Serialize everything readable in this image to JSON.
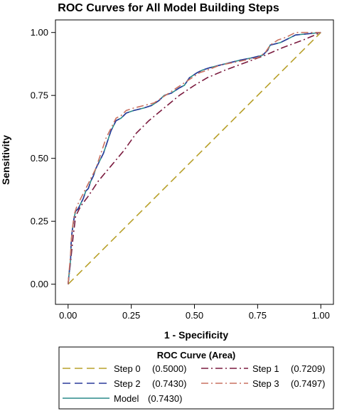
{
  "chart_data": {
    "type": "line",
    "title": "ROC Curves for All Model Building Steps",
    "xlabel": "1 - Specificity",
    "ylabel": "Sensitivity",
    "xlim": [
      -0.05,
      1.05
    ],
    "ylim": [
      -0.08,
      1.05
    ],
    "x_ticks": [
      0.0,
      0.25,
      0.5,
      0.75,
      1.0
    ],
    "x_tick_labels": [
      "0.00",
      "0.25",
      "0.50",
      "0.75",
      "1.00"
    ],
    "y_ticks": [
      0.0,
      0.25,
      0.5,
      0.75,
      1.0
    ],
    "y_tick_labels": [
      "0.00",
      "0.25",
      "0.50",
      "0.75",
      "1.00"
    ],
    "grid": false,
    "legend": {
      "title": "ROC Curve (Area)",
      "placement": "bottom"
    },
    "series": [
      {
        "name": "Step 0",
        "area": "(0.5000)",
        "color": "#b8a02a",
        "dash": "long-dash",
        "points": [
          [
            0,
            0
          ],
          [
            1,
            1
          ]
        ]
      },
      {
        "name": "Step 1",
        "area": "(0.7209)",
        "color": "#7a1a3e",
        "dash": "dash-dot",
        "points": [
          [
            0,
            0
          ],
          [
            0.01,
            0.09
          ],
          [
            0.02,
            0.19
          ],
          [
            0.03,
            0.27
          ],
          [
            0.05,
            0.31
          ],
          [
            0.08,
            0.35
          ],
          [
            0.12,
            0.41
          ],
          [
            0.17,
            0.47
          ],
          [
            0.22,
            0.53
          ],
          [
            0.27,
            0.6
          ],
          [
            0.32,
            0.65
          ],
          [
            0.38,
            0.7
          ],
          [
            0.44,
            0.75
          ],
          [
            0.5,
            0.79
          ],
          [
            0.55,
            0.82
          ],
          [
            0.62,
            0.85
          ],
          [
            0.7,
            0.88
          ],
          [
            0.78,
            0.91
          ],
          [
            0.85,
            0.94
          ],
          [
            0.93,
            0.97
          ],
          [
            1,
            1
          ]
        ]
      },
      {
        "name": "Step 2",
        "area": "(0.7430)",
        "color": "#2a3a9a",
        "dash": "long-dash",
        "points": [
          [
            0,
            0
          ],
          [
            0.005,
            0.05
          ],
          [
            0.01,
            0.1
          ],
          [
            0.012,
            0.16
          ],
          [
            0.015,
            0.2
          ],
          [
            0.02,
            0.24
          ],
          [
            0.025,
            0.27
          ],
          [
            0.03,
            0.29
          ],
          [
            0.04,
            0.3
          ],
          [
            0.05,
            0.32
          ],
          [
            0.06,
            0.34
          ],
          [
            0.07,
            0.37
          ],
          [
            0.08,
            0.38
          ],
          [
            0.09,
            0.41
          ],
          [
            0.1,
            0.43
          ],
          [
            0.11,
            0.46
          ],
          [
            0.12,
            0.48
          ],
          [
            0.13,
            0.5
          ],
          [
            0.14,
            0.52
          ],
          [
            0.15,
            0.55
          ],
          [
            0.16,
            0.58
          ],
          [
            0.17,
            0.61
          ],
          [
            0.18,
            0.63
          ],
          [
            0.19,
            0.65
          ],
          [
            0.21,
            0.66
          ],
          [
            0.23,
            0.68
          ],
          [
            0.26,
            0.69
          ],
          [
            0.3,
            0.7
          ],
          [
            0.33,
            0.71
          ],
          [
            0.36,
            0.73
          ],
          [
            0.38,
            0.75
          ],
          [
            0.41,
            0.76
          ],
          [
            0.44,
            0.78
          ],
          [
            0.46,
            0.79
          ],
          [
            0.48,
            0.82
          ],
          [
            0.51,
            0.84
          ],
          [
            0.53,
            0.85
          ],
          [
            0.56,
            0.86
          ],
          [
            0.6,
            0.87
          ],
          [
            0.64,
            0.88
          ],
          [
            0.68,
            0.89
          ],
          [
            0.73,
            0.9
          ],
          [
            0.77,
            0.91
          ],
          [
            0.79,
            0.93
          ],
          [
            0.8,
            0.95
          ],
          [
            0.84,
            0.96
          ],
          [
            0.88,
            0.98
          ],
          [
            0.9,
            0.99
          ],
          [
            0.95,
            0.995
          ],
          [
            1,
            1
          ]
        ]
      },
      {
        "name": "Step 3",
        "area": "(0.7497)",
        "color": "#c87060",
        "dash": "dash-dot",
        "points": [
          [
            0,
            0
          ],
          [
            0.005,
            0.06
          ],
          [
            0.01,
            0.12
          ],
          [
            0.013,
            0.18
          ],
          [
            0.018,
            0.23
          ],
          [
            0.025,
            0.28
          ],
          [
            0.035,
            0.31
          ],
          [
            0.05,
            0.34
          ],
          [
            0.07,
            0.38
          ],
          [
            0.09,
            0.42
          ],
          [
            0.11,
            0.46
          ],
          [
            0.13,
            0.52
          ],
          [
            0.15,
            0.58
          ],
          [
            0.17,
            0.62
          ],
          [
            0.19,
            0.66
          ],
          [
            0.21,
            0.67
          ],
          [
            0.23,
            0.69
          ],
          [
            0.26,
            0.7
          ],
          [
            0.3,
            0.71
          ],
          [
            0.34,
            0.72
          ],
          [
            0.37,
            0.74
          ],
          [
            0.4,
            0.76
          ],
          [
            0.43,
            0.78
          ],
          [
            0.46,
            0.8
          ],
          [
            0.49,
            0.82
          ],
          [
            0.52,
            0.84
          ],
          [
            0.55,
            0.85
          ],
          [
            0.6,
            0.87
          ],
          [
            0.65,
            0.88
          ],
          [
            0.7,
            0.89
          ],
          [
            0.75,
            0.9
          ],
          [
            0.78,
            0.92
          ],
          [
            0.8,
            0.95
          ],
          [
            0.83,
            0.97
          ],
          [
            0.86,
            0.98
          ],
          [
            0.9,
            1.0
          ],
          [
            1,
            1
          ]
        ]
      },
      {
        "name": "Model",
        "area": "(0.7430)",
        "color": "#2a8a8a",
        "dash": "solid",
        "points": [
          [
            0,
            0
          ],
          [
            0.005,
            0.05
          ],
          [
            0.01,
            0.1
          ],
          [
            0.012,
            0.16
          ],
          [
            0.015,
            0.2
          ],
          [
            0.02,
            0.24
          ],
          [
            0.025,
            0.27
          ],
          [
            0.03,
            0.29
          ],
          [
            0.04,
            0.3
          ],
          [
            0.05,
            0.32
          ],
          [
            0.06,
            0.34
          ],
          [
            0.07,
            0.37
          ],
          [
            0.08,
            0.38
          ],
          [
            0.09,
            0.41
          ],
          [
            0.1,
            0.43
          ],
          [
            0.11,
            0.46
          ],
          [
            0.12,
            0.48
          ],
          [
            0.13,
            0.5
          ],
          [
            0.14,
            0.52
          ],
          [
            0.15,
            0.55
          ],
          [
            0.16,
            0.58
          ],
          [
            0.17,
            0.61
          ],
          [
            0.18,
            0.63
          ],
          [
            0.19,
            0.65
          ],
          [
            0.21,
            0.66
          ],
          [
            0.23,
            0.68
          ],
          [
            0.26,
            0.69
          ],
          [
            0.3,
            0.7
          ],
          [
            0.33,
            0.71
          ],
          [
            0.36,
            0.73
          ],
          [
            0.38,
            0.75
          ],
          [
            0.41,
            0.76
          ],
          [
            0.44,
            0.78
          ],
          [
            0.46,
            0.79
          ],
          [
            0.48,
            0.82
          ],
          [
            0.51,
            0.84
          ],
          [
            0.53,
            0.85
          ],
          [
            0.56,
            0.86
          ],
          [
            0.6,
            0.87
          ],
          [
            0.64,
            0.88
          ],
          [
            0.68,
            0.89
          ],
          [
            0.73,
            0.9
          ],
          [
            0.77,
            0.91
          ],
          [
            0.79,
            0.93
          ],
          [
            0.8,
            0.95
          ],
          [
            0.84,
            0.96
          ],
          [
            0.88,
            0.98
          ],
          [
            0.9,
            0.99
          ],
          [
            0.95,
            0.995
          ],
          [
            1,
            1
          ]
        ]
      }
    ]
  }
}
